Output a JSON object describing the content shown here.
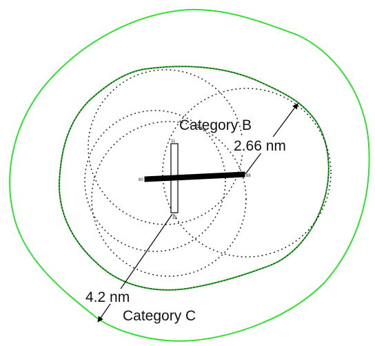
{
  "colors": {
    "category_c_outline": "#33dd33",
    "category_b_outline": "#22aa22",
    "dotted_circles": "#222222",
    "rods": "#000000"
  },
  "labels": {
    "category_b": "Category B",
    "category_c": "Category C",
    "dist_b": "2.66 nm",
    "dist_c": "4.2 nm"
  },
  "rods": {
    "horizontal": {
      "end_left": "60",
      "end_right": "88"
    },
    "vertical": {
      "end_top": "11",
      "end_bottom": "35"
    }
  }
}
